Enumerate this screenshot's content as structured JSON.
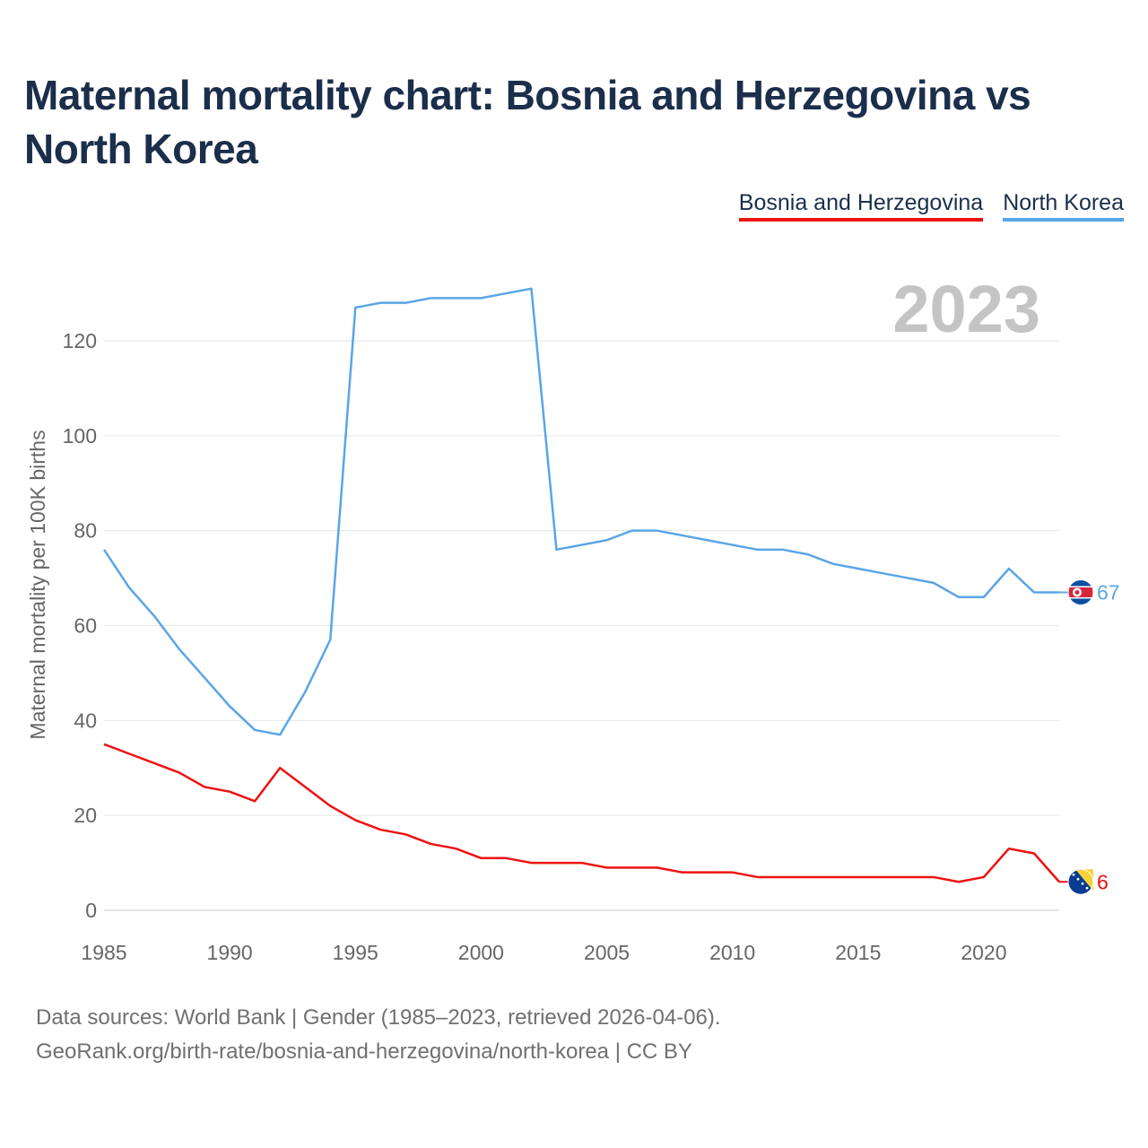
{
  "title": "Maternal mortality chart: Bosnia and Herzegovina vs North Korea",
  "legend": [
    {
      "label": "Bosnia and Herzegovina",
      "color": "#ee1111"
    },
    {
      "label": "North Korea",
      "color": "#5aa5e6"
    }
  ],
  "footer": {
    "line1": "Data sources: World Bank | Gender (1985–2023, retrieved 2026-04-06).",
    "line2": "GeoRank.org/birth-rate/bosnia-and-herzegovina/north-korea | CC BY"
  },
  "chart_data": {
    "type": "line",
    "title": "Maternal mortality chart: Bosnia and Herzegovina vs North Korea",
    "xlabel": "",
    "ylabel": "Maternal mortality per 100K births",
    "year_label": "2023",
    "xlim": [
      1985,
      2023
    ],
    "ylim": [
      0,
      130
    ],
    "x_ticks": [
      1985,
      1990,
      1995,
      2000,
      2005,
      2010,
      2015,
      2020
    ],
    "y_ticks": [
      0,
      20,
      40,
      60,
      80,
      100,
      120
    ],
    "grid": true,
    "x": [
      1985,
      1986,
      1987,
      1988,
      1989,
      1990,
      1991,
      1992,
      1993,
      1994,
      1995,
      1996,
      1997,
      1998,
      1999,
      2000,
      2001,
      2002,
      2003,
      2004,
      2005,
      2006,
      2007,
      2008,
      2009,
      2010,
      2011,
      2012,
      2013,
      2014,
      2015,
      2016,
      2017,
      2018,
      2019,
      2020,
      2021,
      2022,
      2023
    ],
    "series": [
      {
        "name": "Bosnia and Herzegovina",
        "color": "#ee1111",
        "end_label": "6",
        "values": [
          35,
          33,
          31,
          29,
          26,
          25,
          23,
          30,
          26,
          22,
          19,
          17,
          16,
          14,
          13,
          11,
          11,
          10,
          10,
          10,
          9,
          9,
          9,
          8,
          8,
          8,
          7,
          7,
          7,
          7,
          7,
          7,
          7,
          7,
          6,
          7,
          13,
          12,
          6
        ]
      },
      {
        "name": "North Korea",
        "color": "#5aa5e6",
        "end_label": "67",
        "values": [
          76,
          68,
          62,
          55,
          49,
          43,
          38,
          37,
          46,
          57,
          127,
          128,
          128,
          129,
          129,
          129,
          130,
          131,
          76,
          77,
          78,
          80,
          80,
          79,
          78,
          77,
          76,
          76,
          75,
          73,
          72,
          71,
          70,
          69,
          66,
          66,
          72,
          67,
          67
        ]
      }
    ]
  }
}
